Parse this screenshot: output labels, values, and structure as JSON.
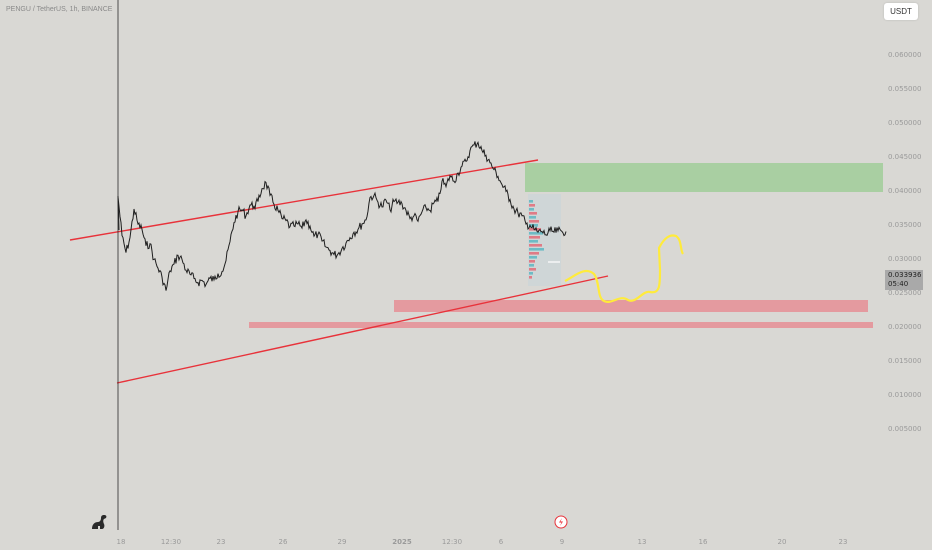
{
  "header": {
    "symbol_title": "PENGU / TetherUS, 1h, BINANCE"
  },
  "toolbar": {
    "currency_label": "USDT"
  },
  "price_tag": {
    "price": "0.033936",
    "countdown": "05:40"
  },
  "colors": {
    "background": "#d9d8d4",
    "channel_line": "#e8323a",
    "target_zone": "#a9cfa2",
    "support_zone": "#e49a9f",
    "projection": "#ffeb3b",
    "price_line": "#1e1e1e"
  },
  "icons": {
    "logo": "dino-logo-icon",
    "flash": "flash-icon"
  },
  "chart_data": {
    "type": "line",
    "title": "",
    "ylabel": "",
    "xlabel": "",
    "ylim": [
      0.0035,
      0.0645
    ],
    "y_ticks": [
      "0.060000",
      "0.055000",
      "0.050000",
      "0.045000",
      "0.040000",
      "0.035000",
      "0.030000",
      "0.025000",
      "0.020000",
      "0.015000",
      "0.010000",
      "0.005000"
    ],
    "x_ticks": [
      "18",
      "12:30",
      "23",
      "26",
      "29",
      "2025",
      "12:30",
      "6",
      "9",
      "13",
      "16",
      "20",
      "23"
    ],
    "grid": false,
    "series": [
      {
        "x": [
          0,
          4,
          8,
          12,
          16,
          20,
          24,
          28,
          32,
          36,
          40,
          44,
          48,
          52,
          56,
          60,
          64,
          68,
          72,
          76,
          80,
          84,
          88,
          92,
          96,
          100,
          104,
          108,
          112,
          116,
          120,
          124,
          128,
          132,
          136,
          140,
          144,
          148,
          152,
          156,
          160,
          164,
          168,
          172,
          176,
          180,
          184,
          188,
          192,
          196,
          200,
          204,
          208,
          212,
          216,
          220,
          224,
          228,
          232,
          236,
          240,
          244,
          248,
          252,
          256,
          260,
          264,
          268,
          272,
          276,
          280,
          284,
          288,
          292,
          296,
          300,
          304,
          308,
          312,
          316,
          320,
          324,
          328,
          332,
          336,
          340,
          344,
          348,
          352,
          356,
          360,
          364,
          368,
          372,
          376,
          380,
          384,
          388,
          392,
          396,
          400,
          404,
          408,
          412,
          416,
          420,
          424,
          428,
          432,
          436,
          440,
          444,
          448
        ],
        "values": [
          0.039,
          0.0333,
          0.0308,
          0.033,
          0.0372,
          0.035,
          0.0342,
          0.0318,
          0.0321,
          0.0298,
          0.0285,
          0.0272,
          0.0252,
          0.0281,
          0.0291,
          0.0304,
          0.0298,
          0.0282,
          0.0276,
          0.027,
          0.0264,
          0.0267,
          0.0261,
          0.027,
          0.0268,
          0.0277,
          0.028,
          0.0296,
          0.0324,
          0.0352,
          0.0368,
          0.0371,
          0.0362,
          0.0378,
          0.0376,
          0.0383,
          0.0402,
          0.0411,
          0.0392,
          0.0379,
          0.037,
          0.0358,
          0.0355,
          0.0346,
          0.0347,
          0.035,
          0.0344,
          0.0356,
          0.0347,
          0.0332,
          0.0335,
          0.0325,
          0.0316,
          0.0311,
          0.0305,
          0.0306,
          0.0314,
          0.0322,
          0.033,
          0.0338,
          0.0342,
          0.035,
          0.0356,
          0.0389,
          0.0392,
          0.0382,
          0.0375,
          0.0385,
          0.0371,
          0.0383,
          0.0382,
          0.038,
          0.037,
          0.0358,
          0.0362,
          0.0354,
          0.0368,
          0.0374,
          0.037,
          0.0381,
          0.0383,
          0.0413,
          0.0405,
          0.0421,
          0.0413,
          0.0425,
          0.0435,
          0.0442,
          0.0458,
          0.0466,
          0.047,
          0.0458,
          0.0451,
          0.044,
          0.043,
          0.042,
          0.0408,
          0.0398,
          0.0386,
          0.0372,
          0.0366,
          0.0362,
          0.035,
          0.0348,
          0.0342,
          0.0338,
          0.0339,
          0.0334,
          0.034,
          0.0338,
          0.034,
          0.0339,
          0.0339
        ]
      }
    ]
  }
}
